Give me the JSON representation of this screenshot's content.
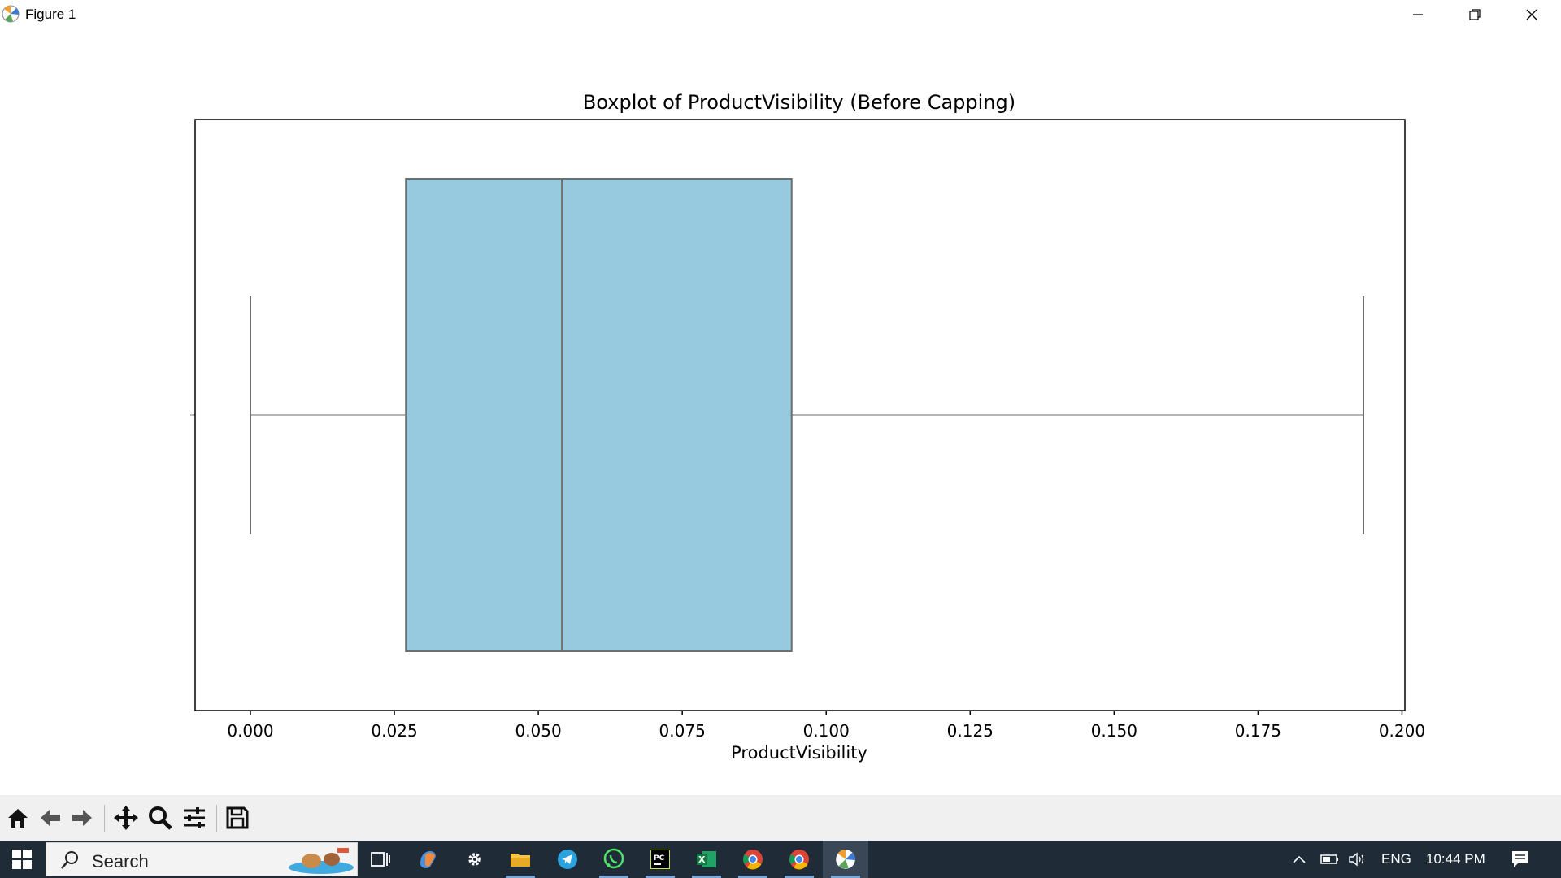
{
  "window": {
    "title": "Figure 1"
  },
  "chart_data": {
    "type": "box",
    "title": "Boxplot of ProductVisibility (Before Capping)",
    "xlabel": "ProductVisibility",
    "ylabel": "",
    "xlim": [
      -0.0096,
      0.2005
    ],
    "xticks": [
      0.0,
      0.025,
      0.05,
      0.075,
      0.1,
      0.125,
      0.15,
      0.175,
      0.2
    ],
    "xtick_labels": [
      "0.000",
      "0.025",
      "0.050",
      "0.075",
      "0.100",
      "0.125",
      "0.150",
      "0.175",
      "0.200"
    ],
    "box": {
      "whisker_low": 0.0,
      "q1": 0.027,
      "median": 0.0541,
      "q3": 0.094,
      "whisker_high": 0.1933
    },
    "box_color": "#97c9df",
    "line_color": "#6e6e6e",
    "grid": false
  },
  "toolbar": {
    "buttons": [
      "home-icon",
      "back-arrow-icon",
      "forward-arrow-icon",
      "pan-icon",
      "zoom-icon",
      "configure-subplots-icon",
      "save-icon"
    ]
  },
  "taskbar": {
    "search_label": "Search",
    "language": "ENG",
    "time": "10:44 PM"
  }
}
